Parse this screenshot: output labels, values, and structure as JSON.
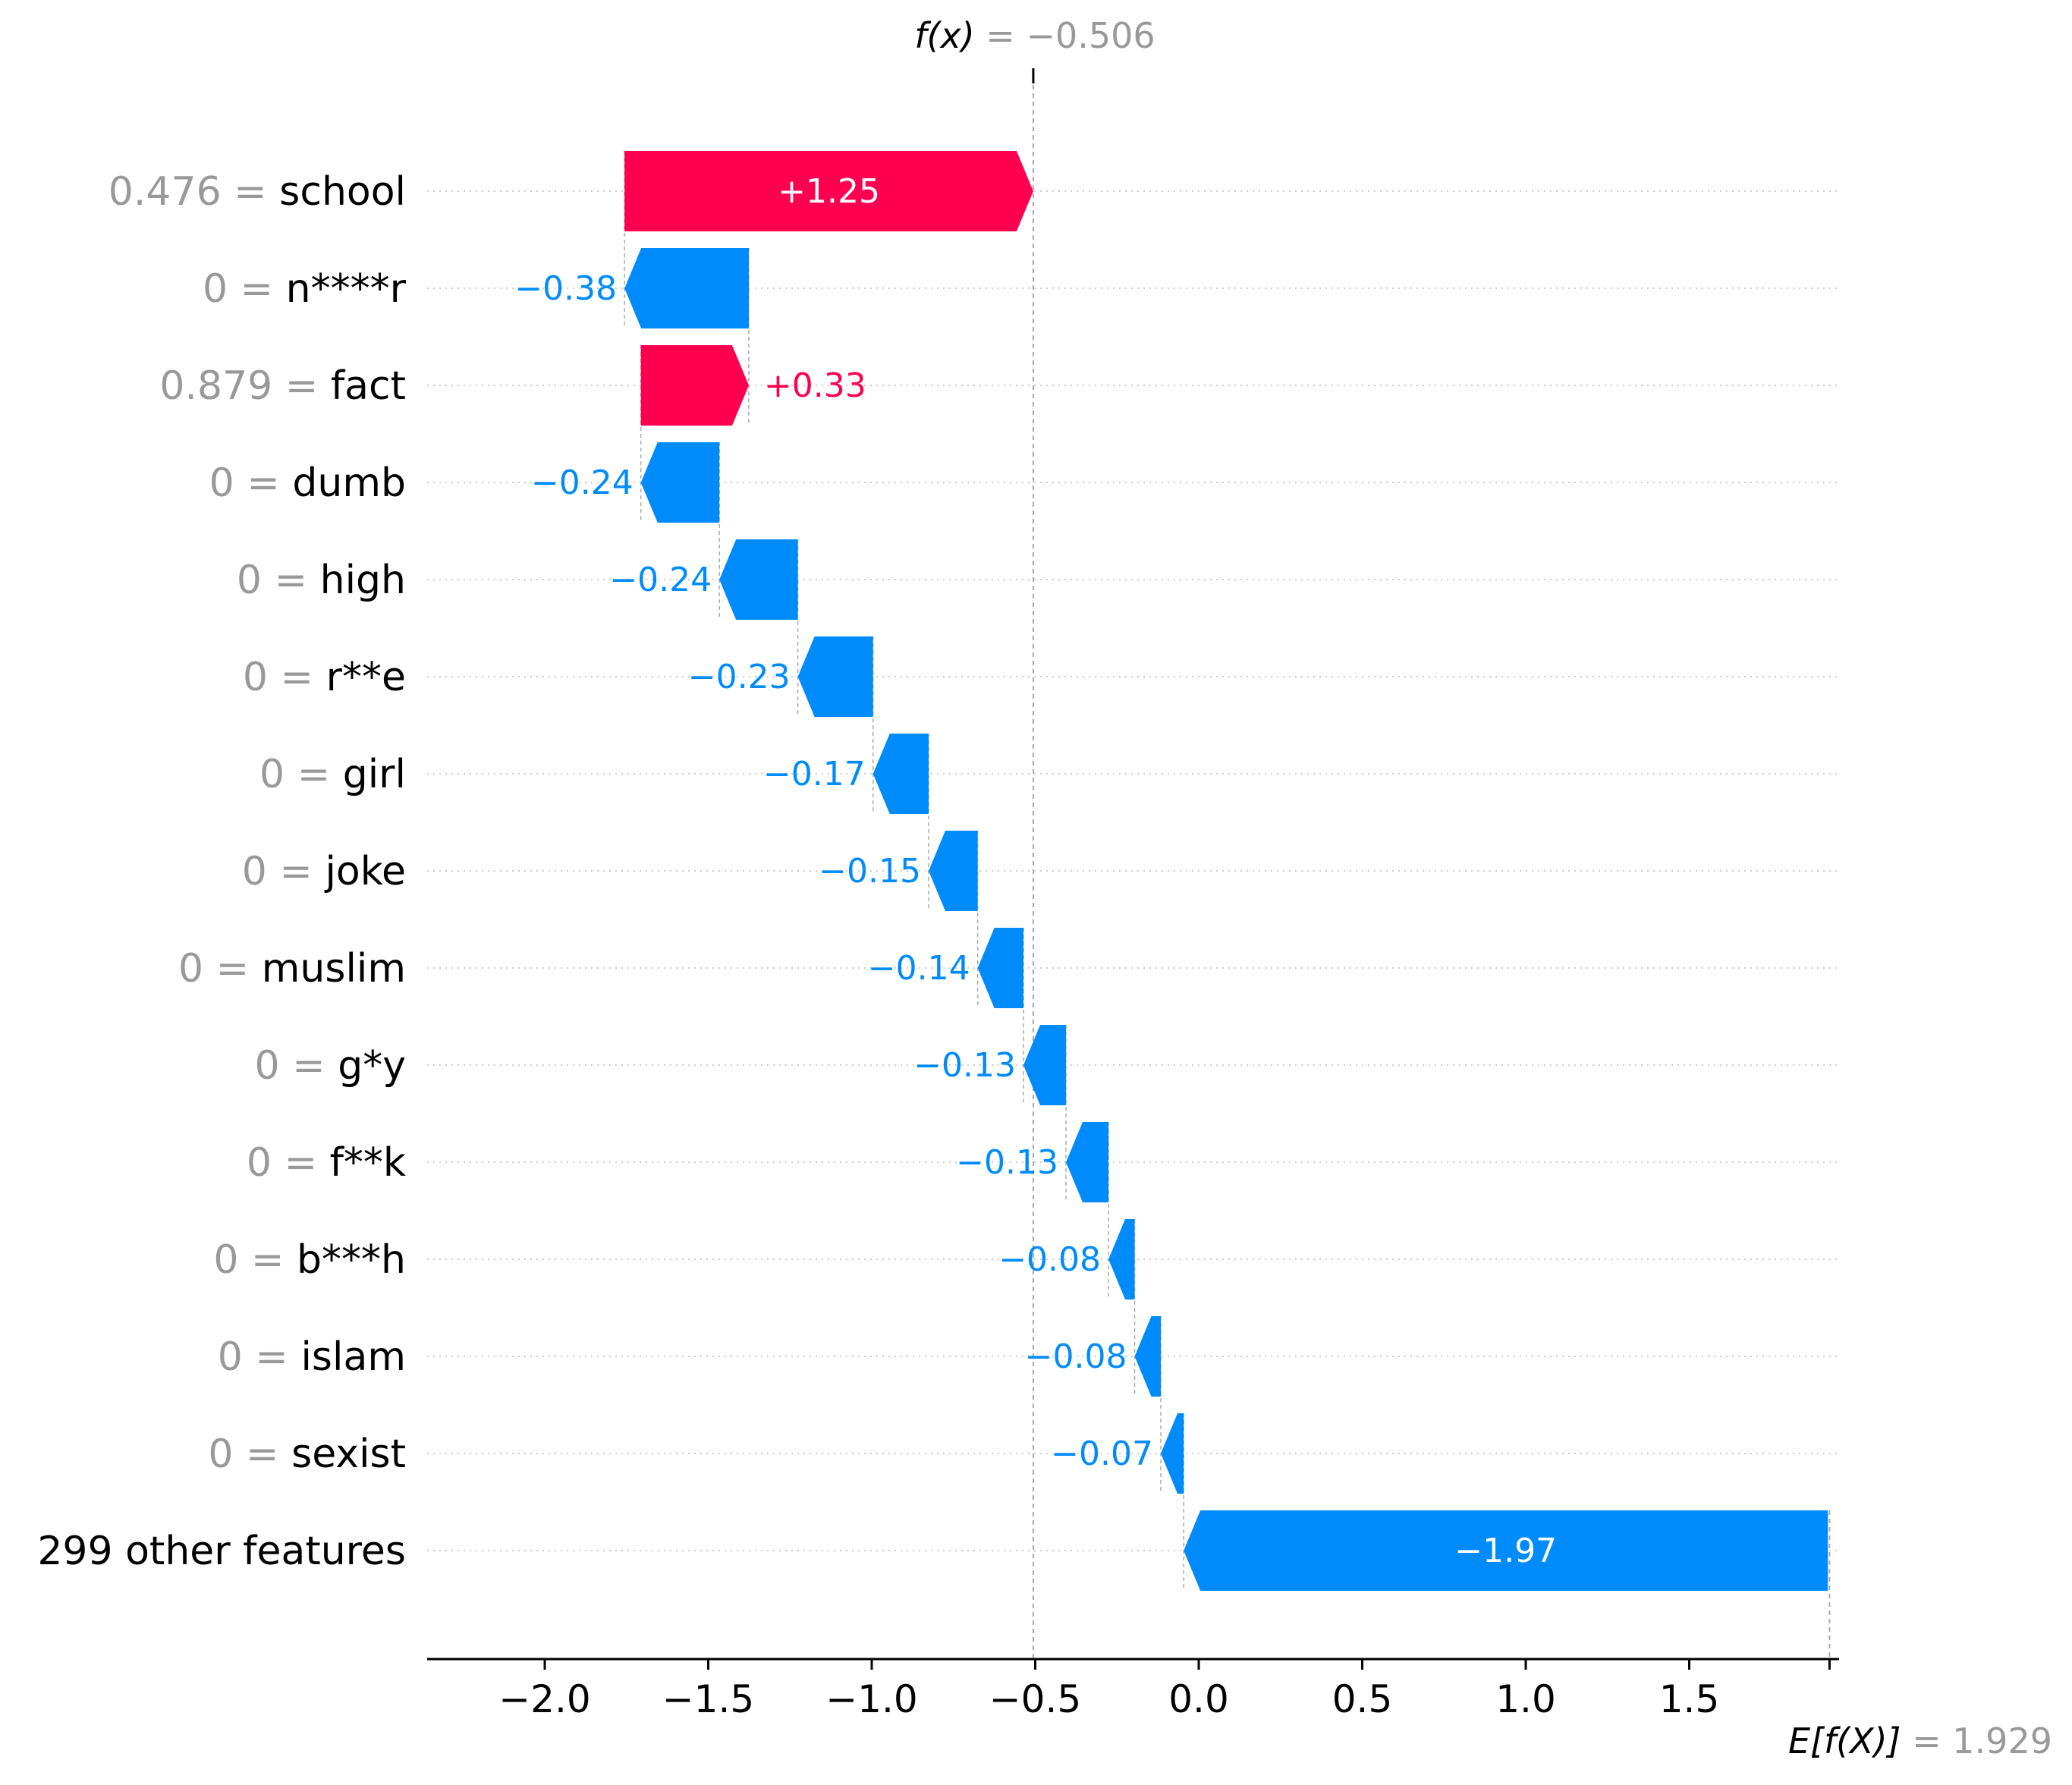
{
  "chart_data": {
    "type": "waterfall",
    "header": {
      "fx_label": "f(x)",
      "fx_eq": " = ",
      "fx_value": "−0.506"
    },
    "footer": {
      "efx_label": "E[f(X)]",
      "efx_eq": " = ",
      "efx_value": "1.929"
    },
    "base_value": 1.929,
    "output_value": -0.506,
    "features": [
      {
        "value_text": "0.476 = ",
        "name": "school",
        "contribution": 1.25,
        "label": "+1.25"
      },
      {
        "value_text": "0 = ",
        "name": "n****r",
        "contribution": -0.38,
        "label": "−0.38"
      },
      {
        "value_text": "0.879 = ",
        "name": "fact",
        "contribution": 0.33,
        "label": "+0.33"
      },
      {
        "value_text": "0 = ",
        "name": "dumb",
        "contribution": -0.24,
        "label": "−0.24"
      },
      {
        "value_text": "0 = ",
        "name": "high",
        "contribution": -0.24,
        "label": "−0.24"
      },
      {
        "value_text": "0 = ",
        "name": "r**e",
        "contribution": -0.23,
        "label": "−0.23"
      },
      {
        "value_text": "0 = ",
        "name": "girl",
        "contribution": -0.17,
        "label": "−0.17"
      },
      {
        "value_text": "0 = ",
        "name": "joke",
        "contribution": -0.15,
        "label": "−0.15"
      },
      {
        "value_text": "0 = ",
        "name": "muslim",
        "contribution": -0.14,
        "label": "−0.14"
      },
      {
        "value_text": "0 = ",
        "name": "g*y",
        "contribution": -0.13,
        "label": "−0.13"
      },
      {
        "value_text": "0 = ",
        "name": "f**k",
        "contribution": -0.13,
        "label": "−0.13"
      },
      {
        "value_text": "0 = ",
        "name": "b***h",
        "contribution": -0.08,
        "label": "−0.08"
      },
      {
        "value_text": "0 = ",
        "name": "islam",
        "contribution": -0.08,
        "label": "−0.08"
      },
      {
        "value_text": "0 = ",
        "name": "sexist",
        "contribution": -0.07,
        "label": "−0.07"
      },
      {
        "value_text": "",
        "name": "299 other features",
        "contribution": -1.97,
        "label": "−1.97"
      }
    ],
    "xlim": [
      -2.35,
      1.95
    ],
    "xticks": [
      -2.0,
      -1.5,
      -1.0,
      -0.5,
      0.0,
      0.5,
      1.0,
      1.5
    ],
    "xtick_labels": [
      "−2.0",
      "−1.5",
      "−1.0",
      "−0.5",
      "0.0",
      "0.5",
      "1.0",
      "1.5"
    ],
    "colors": {
      "positive": "#ff0051",
      "negative": "#008bfb",
      "muted_text": "#999999",
      "text": "#000000",
      "gridline": "#cccccc"
    }
  }
}
